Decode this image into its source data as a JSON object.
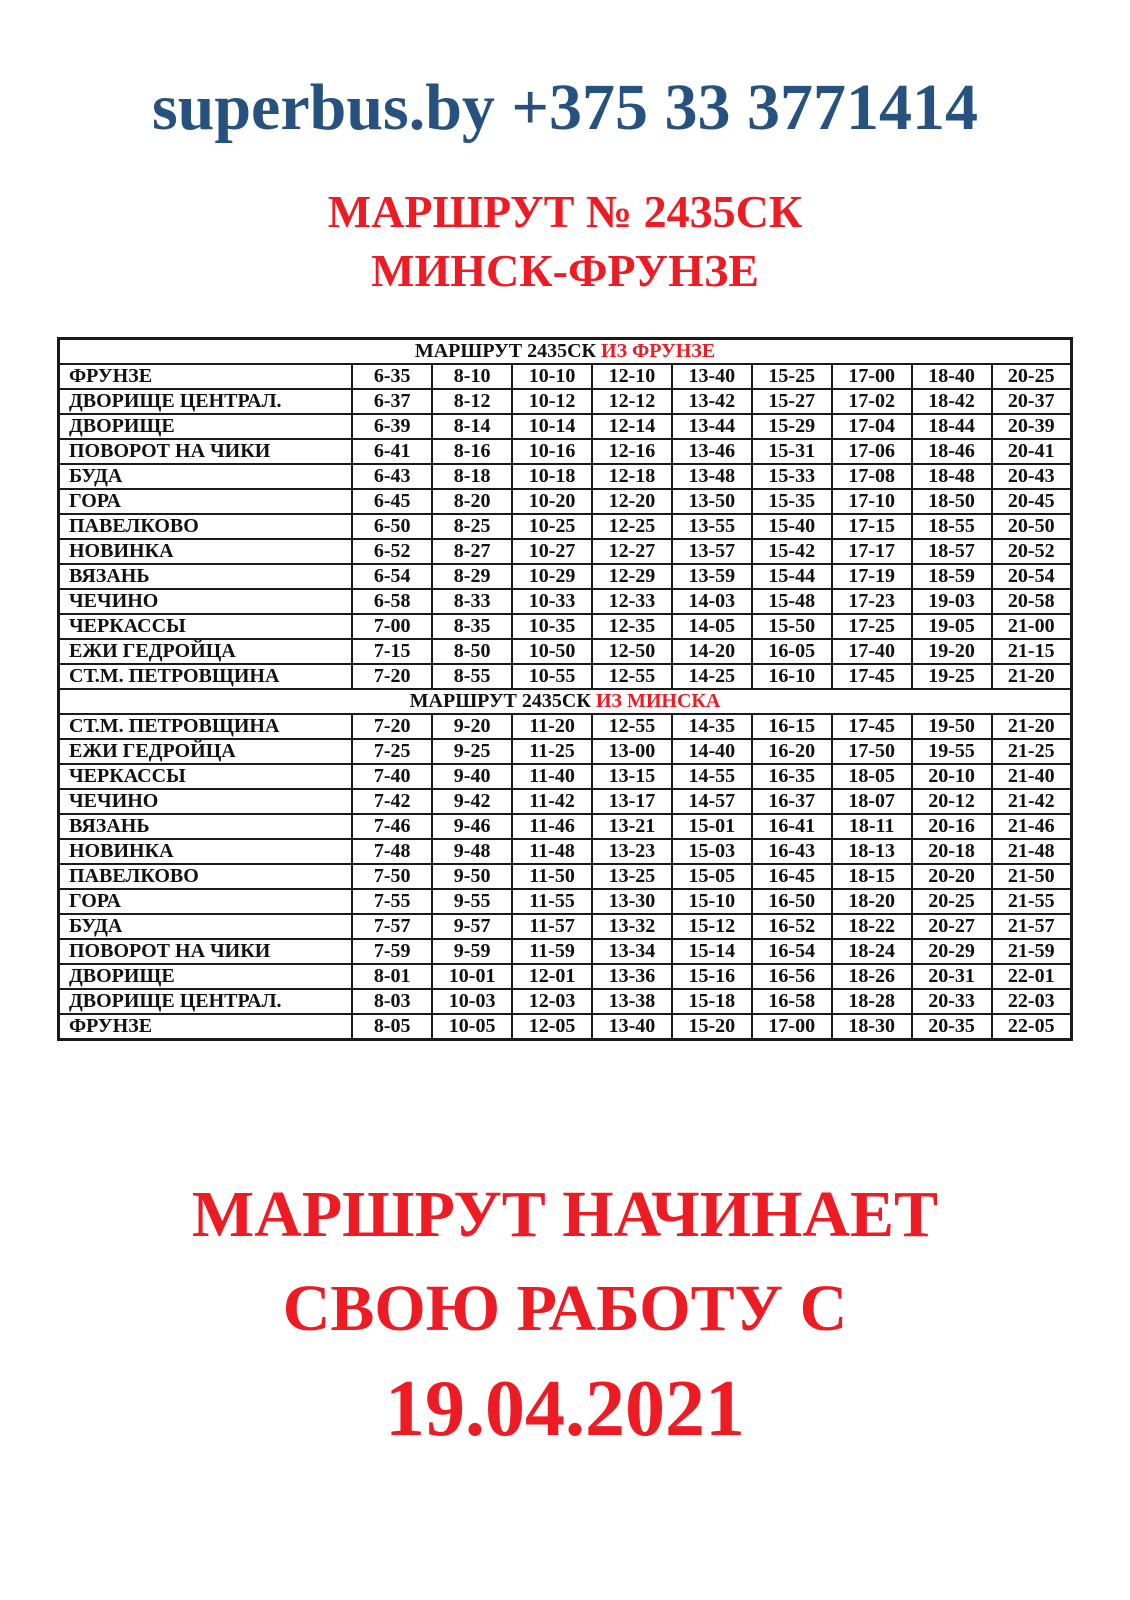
{
  "colors": {
    "brand_blue": "#27517E",
    "accent_red": "#ED1C24",
    "text_black": "#111111",
    "border_black": "#1a1a1a",
    "background": "#ffffff"
  },
  "header": {
    "brand_line": "superbus.by +375 33 3771414"
  },
  "title": {
    "line1": "МАРШРУТ № 2435СК",
    "line2": "МИНСК-ФРУНЗЕ"
  },
  "table": {
    "sections": [
      {
        "header_black": "МАРШРУТ 2435СК",
        "header_red": "ИЗ ФРУНЗЕ",
        "rows": [
          {
            "station": "ФРУНЗЕ",
            "times": [
              "6-35",
              "8-10",
              "10-10",
              "12-10",
              "13-40",
              "15-25",
              "17-00",
              "18-40",
              "20-25"
            ]
          },
          {
            "station": "ДВОРИЩЕ ЦЕНТРАЛ.",
            "times": [
              "6-37",
              "8-12",
              "10-12",
              "12-12",
              "13-42",
              "15-27",
              "17-02",
              "18-42",
              "20-37"
            ]
          },
          {
            "station": "ДВОРИЩЕ",
            "times": [
              "6-39",
              "8-14",
              "10-14",
              "12-14",
              "13-44",
              "15-29",
              "17-04",
              "18-44",
              "20-39"
            ]
          },
          {
            "station": "ПОВОРОТ НА ЧИКИ",
            "times": [
              "6-41",
              "8-16",
              "10-16",
              "12-16",
              "13-46",
              "15-31",
              "17-06",
              "18-46",
              "20-41"
            ]
          },
          {
            "station": "БУДА",
            "times": [
              "6-43",
              "8-18",
              "10-18",
              "12-18",
              "13-48",
              "15-33",
              "17-08",
              "18-48",
              "20-43"
            ]
          },
          {
            "station": "ГОРА",
            "times": [
              "6-45",
              "8-20",
              "10-20",
              "12-20",
              "13-50",
              "15-35",
              "17-10",
              "18-50",
              "20-45"
            ]
          },
          {
            "station": "ПАВЕЛКОВО",
            "times": [
              "6-50",
              "8-25",
              "10-25",
              "12-25",
              "13-55",
              "15-40",
              "17-15",
              "18-55",
              "20-50"
            ]
          },
          {
            "station": "НОВИНКА",
            "times": [
              "6-52",
              "8-27",
              "10-27",
              "12-27",
              "13-57",
              "15-42",
              "17-17",
              "18-57",
              "20-52"
            ]
          },
          {
            "station": "ВЯЗАНЬ",
            "times": [
              "6-54",
              "8-29",
              "10-29",
              "12-29",
              "13-59",
              "15-44",
              "17-19",
              "18-59",
              "20-54"
            ]
          },
          {
            "station": "ЧЕЧИНО",
            "times": [
              "6-58",
              "8-33",
              "10-33",
              "12-33",
              "14-03",
              "15-48",
              "17-23",
              "19-03",
              "20-58"
            ]
          },
          {
            "station": "ЧЕРКАССЫ",
            "times": [
              "7-00",
              "8-35",
              "10-35",
              "12-35",
              "14-05",
              "15-50",
              "17-25",
              "19-05",
              "21-00"
            ]
          },
          {
            "station": "ЕЖИ ГЕДРОЙЦА",
            "times": [
              "7-15",
              "8-50",
              "10-50",
              "12-50",
              "14-20",
              "16-05",
              "17-40",
              "19-20",
              "21-15"
            ]
          },
          {
            "station": "СТ.М. ПЕТРОВЩИНА",
            "times": [
              "7-20",
              "8-55",
              "10-55",
              "12-55",
              "14-25",
              "16-10",
              "17-45",
              "19-25",
              "21-20"
            ]
          }
        ]
      },
      {
        "header_black": "МАРШРУТ 2435СК",
        "header_red": "ИЗ МИНСКА",
        "rows": [
          {
            "station": "СТ.М. ПЕТРОВЩИНА",
            "times": [
              "7-20",
              "9-20",
              "11-20",
              "12-55",
              "14-35",
              "16-15",
              "17-45",
              "19-50",
              "21-20"
            ]
          },
          {
            "station": "ЕЖИ ГЕДРОЙЦА",
            "times": [
              "7-25",
              "9-25",
              "11-25",
              "13-00",
              "14-40",
              "16-20",
              "17-50",
              "19-55",
              "21-25"
            ]
          },
          {
            "station": "ЧЕРКАССЫ",
            "times": [
              "7-40",
              "9-40",
              "11-40",
              "13-15",
              "14-55",
              "16-35",
              "18-05",
              "20-10",
              "21-40"
            ]
          },
          {
            "station": "ЧЕЧИНО",
            "times": [
              "7-42",
              "9-42",
              "11-42",
              "13-17",
              "14-57",
              "16-37",
              "18-07",
              "20-12",
              "21-42"
            ]
          },
          {
            "station": "ВЯЗАНЬ",
            "times": [
              "7-46",
              "9-46",
              "11-46",
              "13-21",
              "15-01",
              "16-41",
              "18-11",
              "20-16",
              "21-46"
            ]
          },
          {
            "station": "НОВИНКА",
            "times": [
              "7-48",
              "9-48",
              "11-48",
              "13-23",
              "15-03",
              "16-43",
              "18-13",
              "20-18",
              "21-48"
            ]
          },
          {
            "station": "ПАВЕЛКОВО",
            "times": [
              "7-50",
              "9-50",
              "11-50",
              "13-25",
              "15-05",
              "16-45",
              "18-15",
              "20-20",
              "21-50"
            ]
          },
          {
            "station": "ГОРА",
            "times": [
              "7-55",
              "9-55",
              "11-55",
              "13-30",
              "15-10",
              "16-50",
              "18-20",
              "20-25",
              "21-55"
            ]
          },
          {
            "station": "БУДА",
            "times": [
              "7-57",
              "9-57",
              "11-57",
              "13-32",
              "15-12",
              "16-52",
              "18-22",
              "20-27",
              "21-57"
            ]
          },
          {
            "station": "ПОВОРОТ НА ЧИКИ",
            "times": [
              "7-59",
              "9-59",
              "11-59",
              "13-34",
              "15-14",
              "16-54",
              "18-24",
              "20-29",
              "21-59"
            ]
          },
          {
            "station": "ДВОРИЩЕ",
            "times": [
              "8-01",
              "10-01",
              "12-01",
              "13-36",
              "15-16",
              "16-56",
              "18-26",
              "20-31",
              "22-01"
            ]
          },
          {
            "station": "ДВОРИЩЕ ЦЕНТРАЛ.",
            "times": [
              "8-03",
              "10-03",
              "12-03",
              "13-38",
              "15-18",
              "16-58",
              "18-28",
              "20-33",
              "22-03"
            ]
          },
          {
            "station": "ФРУНЗЕ",
            "times": [
              "8-05",
              "10-05",
              "12-05",
              "13-40",
              "15-20",
              "17-00",
              "18-30",
              "20-35",
              "22-05"
            ]
          }
        ]
      }
    ]
  },
  "footer": {
    "line1": "МАРШРУТ НАЧИНАЕТ",
    "line2": "СВОЮ РАБОТУ С",
    "date": "19.04.2021"
  }
}
